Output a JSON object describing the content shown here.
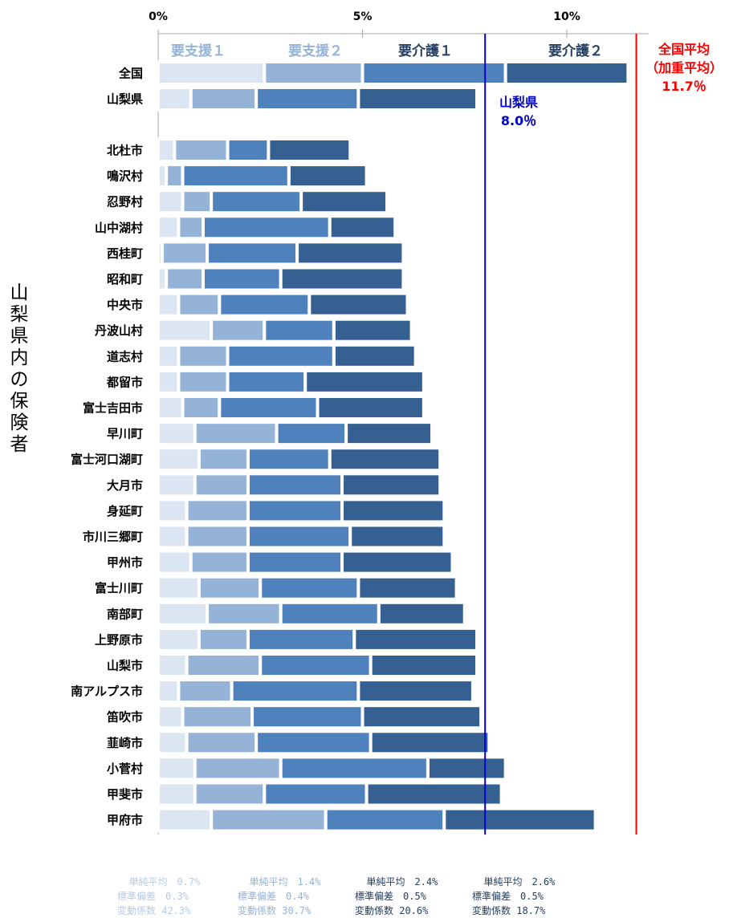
{
  "chart_data": {
    "type": "bar",
    "stacked": true,
    "orientation": "horizontal",
    "ylabel": "山梨県内の保険者",
    "xlim": [
      0,
      12
    ],
    "x_ticks": [
      {
        "value": 0,
        "label": "0%"
      },
      {
        "value": 5,
        "label": "5%"
      },
      {
        "value": 10,
        "label": "10%"
      }
    ],
    "categories": [
      "全国",
      "山梨県",
      "北杜市",
      "鳴沢村",
      "忍野村",
      "山中湖村",
      "西桂町",
      "昭和町",
      "中央市",
      "丹波山村",
      "道志村",
      "都留市",
      "富士吉田市",
      "早川町",
      "富士河口湖町",
      "大月市",
      "身延町",
      "市川三郷町",
      "甲州市",
      "富士川町",
      "南部町",
      "上野原市",
      "山梨市",
      "南アルプス市",
      "笛吹市",
      "韮崎市",
      "小菅村",
      "甲斐市",
      "甲府市"
    ],
    "series": [
      {
        "name": "要支援１",
        "color": "#DCE6F2",
        "label_color": "#95B3D7",
        "values": [
          2.6,
          0.8,
          0.4,
          0.2,
          0.6,
          0.5,
          0.1,
          0.2,
          0.5,
          1.3,
          0.5,
          0.5,
          0.6,
          0.9,
          1.0,
          0.9,
          0.7,
          0.7,
          0.8,
          1.0,
          1.2,
          1.0,
          0.7,
          0.5,
          0.6,
          0.7,
          0.9,
          0.9,
          1.3
        ]
      },
      {
        "name": "要支援２",
        "color": "#95B3D7",
        "label_color": "#95B3D7",
        "values": [
          2.4,
          1.6,
          1.3,
          0.4,
          0.7,
          0.6,
          1.1,
          0.9,
          1.0,
          1.3,
          1.2,
          1.2,
          0.9,
          2.0,
          1.2,
          1.3,
          1.5,
          1.5,
          1.4,
          1.5,
          1.8,
          1.2,
          1.8,
          1.3,
          1.7,
          1.7,
          2.1,
          1.7,
          2.8
        ]
      },
      {
        "name": "要介護１",
        "color": "#4F81BD",
        "label_color": "#254061",
        "values": [
          3.5,
          2.5,
          1.0,
          2.6,
          2.2,
          3.1,
          2.2,
          1.9,
          2.2,
          1.7,
          2.6,
          1.9,
          2.4,
          1.7,
          2.0,
          2.3,
          2.3,
          2.5,
          2.3,
          2.4,
          2.4,
          2.6,
          2.7,
          3.1,
          2.7,
          2.8,
          3.6,
          2.5,
          2.9
        ]
      },
      {
        "name": "要介護２",
        "color": "#376092",
        "label_color": "#254061",
        "values": [
          3.0,
          2.9,
          2.0,
          1.9,
          2.1,
          1.6,
          2.6,
          3.0,
          2.4,
          1.9,
          2.0,
          2.9,
          2.6,
          2.1,
          2.7,
          2.4,
          2.5,
          2.3,
          2.7,
          2.4,
          2.1,
          3.0,
          2.6,
          2.8,
          2.9,
          2.9,
          1.9,
          3.3,
          3.7
        ]
      }
    ],
    "reference_lines": [
      {
        "value": 11.7,
        "label": [
          "全国平均",
          "（加重平均）",
          "11.7％"
        ],
        "color": "#FF0000"
      },
      {
        "value": 8.0,
        "label": [
          "山梨県",
          "8.0％"
        ],
        "color": "#0000CC"
      }
    ],
    "grid": false,
    "legend": "top"
  },
  "stats": [
    {
      "color": "#B8CCE4",
      "lines": [
        "単純平均　0.7%",
        "標準偏差　0.3%",
        "変動係数 42.3%"
      ]
    },
    {
      "color": "#95B3D7",
      "lines": [
        "単純平均　1.4%",
        "標準偏差　0.4%",
        "変動係数 30.7%"
      ]
    },
    {
      "color": "#254061",
      "lines": [
        "単純平均　2.4%",
        "標準偏差　0.5%",
        "変動係数 20.6%"
      ]
    },
    {
      "color": "#254061",
      "lines": [
        "単純平均　2.6%",
        "標準偏差　0.5%",
        "変動係数 18.7%"
      ]
    }
  ]
}
